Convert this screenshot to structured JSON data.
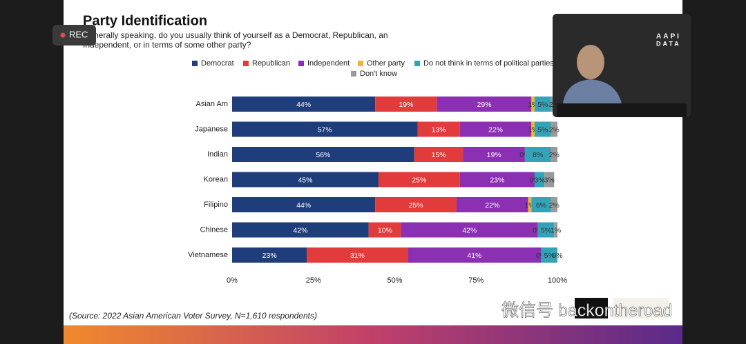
{
  "ui": {
    "rec": "REC",
    "video_logo_top": "AAPI",
    "video_logo_bottom": "DATA",
    "watermark": "微信号 backontheroad"
  },
  "source": "(Source: 2022 Asian American Voter Survey, N=1,610 respondents)",
  "chart_data": {
    "type": "stacked-bar-horizontal",
    "title": "Party Identification",
    "subtitle": [
      "Generally speaking, do you usually think of yourself as a Democrat, Republican, an",
      "Independent, or in terms of some other party?"
    ],
    "categories": [
      "Asian Am",
      "Japanese",
      "Indian",
      "Korean",
      "Filipino",
      "Chinese",
      "Vietnamese"
    ],
    "series": [
      {
        "name": "Democrat",
        "color": "#1f3d7a",
        "values": [
          44,
          57,
          56,
          45,
          44,
          42,
          23
        ],
        "value_labels": [
          "44%",
          "57%",
          "56%",
          "45%",
          "44%",
          "42%",
          "23%"
        ]
      },
      {
        "name": "Republican",
        "color": "#e23b3b",
        "values": [
          19,
          13,
          15,
          25,
          25,
          10,
          31
        ],
        "value_labels": [
          "19%",
          "13%",
          "15%",
          "25%",
          "25%",
          "10%",
          "31%"
        ]
      },
      {
        "name": "Independent",
        "color": "#8b2fb3",
        "values": [
          29,
          22,
          19,
          23,
          22,
          42,
          41
        ],
        "value_labels": [
          "29%",
          "22%",
          "19%",
          "23%",
          "22%",
          "42%",
          "41%"
        ]
      },
      {
        "name": "Other party",
        "color": "#f2b233",
        "values": [
          1,
          1,
          0,
          0,
          1,
          0,
          0
        ],
        "value_labels": [
          "1%",
          "1%",
          "0%",
          "0%",
          "1%",
          "0%",
          "0%"
        ]
      },
      {
        "name": "Do not think in terms of political parties",
        "color": "#33a3b8",
        "values": [
          5,
          5,
          8,
          3,
          6,
          5,
          5
        ],
        "value_labels": [
          "5%",
          "5%",
          "8%",
          "3%",
          "6%",
          "5%",
          "5%"
        ]
      },
      {
        "name": "Don't know",
        "color": "#9a9a9a",
        "values": [
          2,
          2,
          2,
          3,
          2,
          1,
          0
        ],
        "value_labels": [
          "2%",
          "2%",
          "2%",
          "3%",
          "2%",
          "1%",
          "0%"
        ]
      }
    ],
    "xlim": [
      0,
      100
    ],
    "xticks": [
      {
        "value": 0,
        "label": "0%"
      },
      {
        "value": 25,
        "label": "25%"
      },
      {
        "value": 50,
        "label": "50%"
      },
      {
        "value": 75,
        "label": "75%"
      },
      {
        "value": 100,
        "label": "100%"
      }
    ]
  }
}
